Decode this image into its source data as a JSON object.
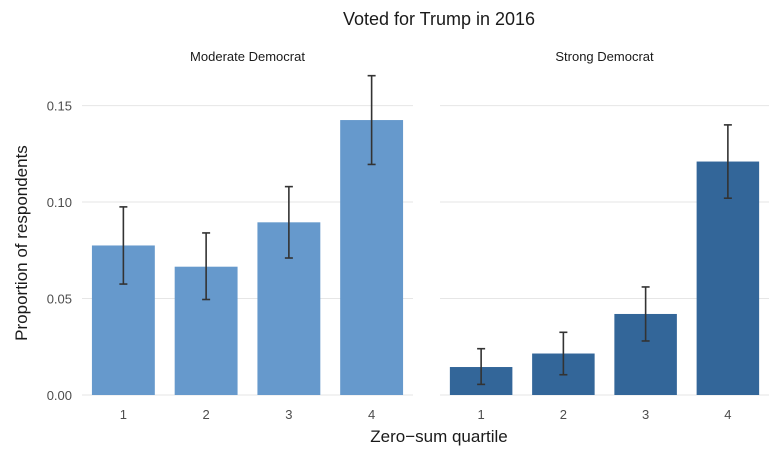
{
  "chart_data": {
    "type": "bar",
    "title": "Voted for Trump in 2016",
    "xlabel": "Zero−sum quartile",
    "ylabel": "Proportion of respondents",
    "ylim": [
      0,
      0.17
    ],
    "yticks": [
      "0.00",
      "0.05",
      "0.10",
      "0.15"
    ],
    "ytick_values": [
      0,
      0.05,
      0.1,
      0.15
    ],
    "grid": true,
    "categories": [
      "1",
      "2",
      "3",
      "4"
    ],
    "panels": [
      {
        "name": "Moderate Democrat",
        "color": "#6699cc",
        "values": [
          0.0775,
          0.0665,
          0.0895,
          0.1425
        ],
        "err_low": [
          0.0575,
          0.0495,
          0.071,
          0.1195
        ],
        "err_high": [
          0.0975,
          0.084,
          0.108,
          0.1655
        ]
      },
      {
        "name": "Strong Democrat",
        "color": "#336699",
        "values": [
          0.0145,
          0.0215,
          0.042,
          0.121
        ],
        "err_low": [
          0.0055,
          0.0105,
          0.028,
          0.102
        ],
        "err_high": [
          0.024,
          0.0325,
          0.056,
          0.14
        ]
      }
    ]
  }
}
